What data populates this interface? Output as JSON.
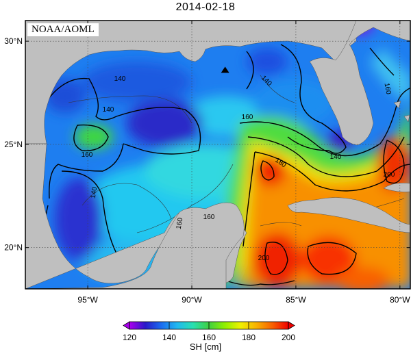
{
  "title": "2014-02-18",
  "credit": "NOAA/AOML",
  "lon_ticks": [
    {
      "value": -95,
      "label": "95°W"
    },
    {
      "value": -90,
      "label": "90°W"
    },
    {
      "value": -85,
      "label": "85°W"
    },
    {
      "value": -80,
      "label": "80°W"
    }
  ],
  "lat_ticks": [
    {
      "value": 30,
      "label": "30°N"
    },
    {
      "value": 25,
      "label": "25°N"
    },
    {
      "value": 20,
      "label": "20°N"
    }
  ],
  "map_extent": {
    "lon_min": -98,
    "lon_max": -79.5,
    "lat_min": 18,
    "lat_max": 31
  },
  "colors": {
    "land": "#bfbfbf",
    "contour": "#000000",
    "scale": [
      "#aa00ee",
      "#2a1ac8",
      "#1a6cf0",
      "#20b8f0",
      "#28e0b0",
      "#40d040",
      "#90f000",
      "#f0f000",
      "#f8b000",
      "#f86000",
      "#f00000"
    ]
  },
  "contour_labels": [
    "140",
    "140",
    "140",
    "160",
    "160",
    "180",
    "160",
    "140",
    "140",
    "160",
    "200",
    "160",
    "200"
  ],
  "colorbar": {
    "title": "SH [cm]",
    "ticks": [
      "120",
      "140",
      "160",
      "180",
      "200"
    ],
    "min": 120,
    "max": 200
  },
  "marker": {
    "name": "triangle",
    "lon": -88.4,
    "lat": 28.6
  }
}
